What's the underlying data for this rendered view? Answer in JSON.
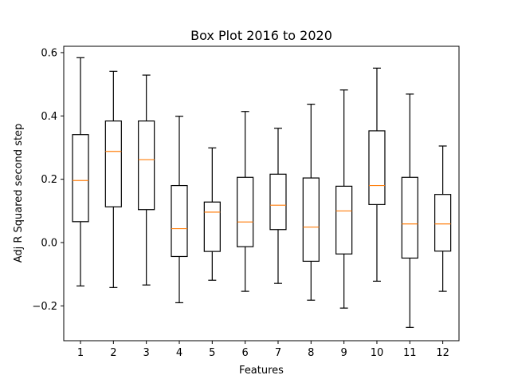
{
  "chart_data": {
    "type": "box",
    "title": "Box Plot 2016 to 2020",
    "xlabel": "Features",
    "ylabel": "Adj R Squared second step",
    "categories": [
      "1",
      "2",
      "3",
      "4",
      "5",
      "6",
      "7",
      "8",
      "9",
      "10",
      "11",
      "12"
    ],
    "ylim": [
      -0.31,
      0.62
    ],
    "yticks": [
      -0.2,
      0.0,
      0.2,
      0.4,
      0.6
    ],
    "ytick_labels": [
      "−0.2",
      "0.0",
      "0.2",
      "0.4",
      "0.6"
    ],
    "grid": false,
    "box_color": "#000000",
    "median_color": "#ff7f0e",
    "boxes": [
      {
        "whisker_low": -0.137,
        "q1": 0.066,
        "median": 0.196,
        "q3": 0.341,
        "whisker_high": 0.584
      },
      {
        "whisker_low": -0.142,
        "q1": 0.113,
        "median": 0.288,
        "q3": 0.384,
        "whisker_high": 0.541
      },
      {
        "whisker_low": -0.134,
        "q1": 0.104,
        "median": 0.262,
        "q3": 0.384,
        "whisker_high": 0.529
      },
      {
        "whisker_low": -0.19,
        "q1": -0.044,
        "median": 0.044,
        "q3": 0.18,
        "whisker_high": 0.399
      },
      {
        "whisker_low": -0.119,
        "q1": -0.028,
        "median": 0.096,
        "q3": 0.128,
        "whisker_high": 0.299
      },
      {
        "whisker_low": -0.154,
        "q1": -0.013,
        "median": 0.065,
        "q3": 0.206,
        "whisker_high": 0.414
      },
      {
        "whisker_low": -0.129,
        "q1": 0.041,
        "median": 0.118,
        "q3": 0.216,
        "whisker_high": 0.361
      },
      {
        "whisker_low": -0.182,
        "q1": -0.059,
        "median": 0.049,
        "q3": 0.204,
        "whisker_high": 0.437
      },
      {
        "whisker_low": -0.207,
        "q1": -0.036,
        "median": 0.1,
        "q3": 0.178,
        "whisker_high": 0.482
      },
      {
        "whisker_low": -0.122,
        "q1": 0.12,
        "median": 0.18,
        "q3": 0.353,
        "whisker_high": 0.551
      },
      {
        "whisker_low": -0.268,
        "q1": -0.049,
        "median": 0.059,
        "q3": 0.206,
        "whisker_high": 0.469
      },
      {
        "whisker_low": -0.154,
        "q1": -0.027,
        "median": 0.059,
        "q3": 0.152,
        "whisker_high": 0.305
      }
    ]
  }
}
